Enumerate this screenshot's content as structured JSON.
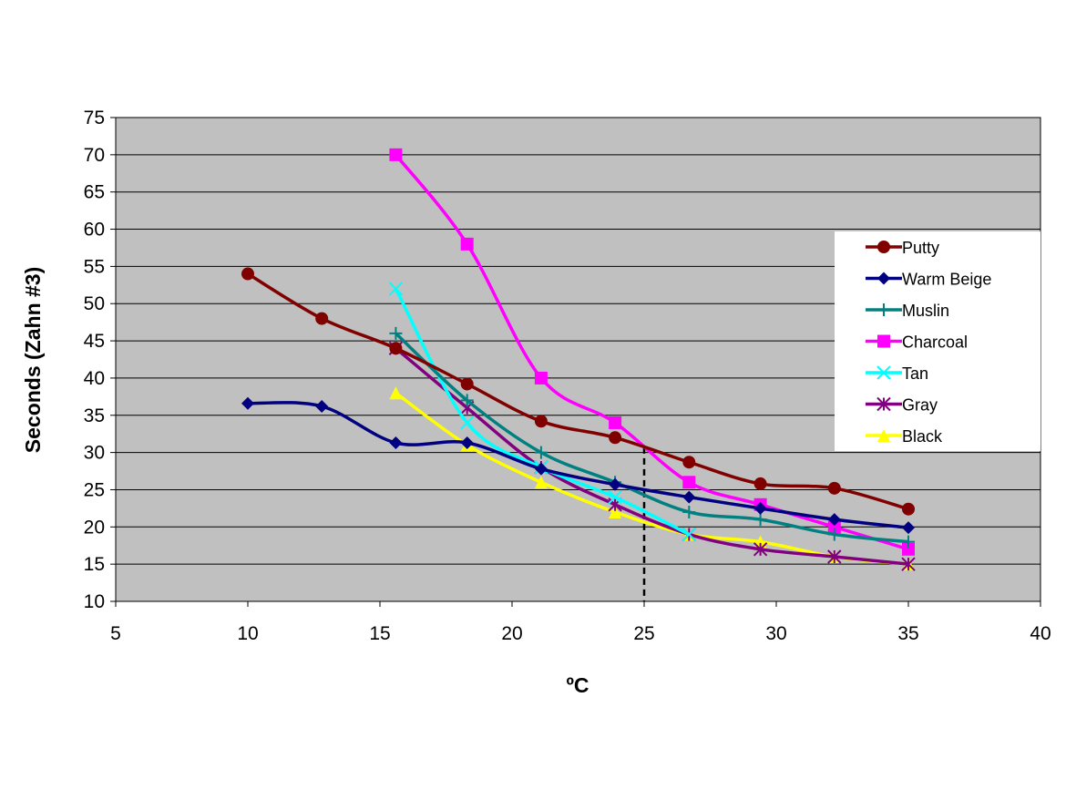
{
  "chart_data": {
    "type": "line",
    "title": "",
    "xlabel": "ºC",
    "ylabel": "Seconds (Zahn #3)",
    "xlim": [
      5,
      40
    ],
    "ylim": [
      10,
      75
    ],
    "xticks": [
      5,
      10,
      15,
      20,
      25,
      30,
      35,
      40
    ],
    "yticks": [
      10,
      15,
      20,
      25,
      30,
      35,
      40,
      45,
      50,
      55,
      60,
      65,
      70,
      75
    ],
    "grid": "horizontal",
    "legend_position": "right",
    "smoothed": true,
    "background_color": "#C0C0C0",
    "reference_line": {
      "x": 25,
      "style": "dashed"
    },
    "series": [
      {
        "name": "Putty",
        "color": "#800000",
        "marker": "circle",
        "x": [
          10,
          12.8,
          15.6,
          18.3,
          21.1,
          23.9,
          26.7,
          29.4,
          32.2,
          35
        ],
        "y": [
          54,
          48,
          44,
          39.2,
          34.2,
          32,
          28.7,
          25.8,
          25.2,
          22.4
        ]
      },
      {
        "name": "Warm Beige",
        "color": "#000080",
        "marker": "diamond",
        "x": [
          10,
          12.8,
          15.6,
          18.3,
          21.1,
          23.9,
          26.7,
          29.4,
          32.2,
          35
        ],
        "y": [
          36.6,
          36.2,
          31.3,
          31.3,
          27.8,
          25.7,
          24,
          22.5,
          21,
          19.9
        ]
      },
      {
        "name": "Muslin",
        "color": "#008080",
        "marker": "plus",
        "x": [
          15.6,
          18.3,
          21.1,
          23.9,
          26.7,
          29.4,
          32.2,
          35
        ],
        "y": [
          46,
          37,
          30,
          26,
          22,
          21,
          19,
          18
        ]
      },
      {
        "name": "Charcoal",
        "color": "#FF00FF",
        "marker": "square",
        "x": [
          15.6,
          18.3,
          21.1,
          23.9,
          26.7,
          29.4,
          32.2,
          35
        ],
        "y": [
          70,
          58,
          40,
          34,
          26,
          23,
          20,
          17
        ]
      },
      {
        "name": "Tan",
        "color": "#00FFFF",
        "marker": "x",
        "x": [
          15.6,
          18.3,
          21.1,
          23.9,
          26.7
        ],
        "y": [
          52,
          34,
          28,
          24,
          19
        ]
      },
      {
        "name": "Gray",
        "color": "#800080",
        "marker": "star",
        "x": [
          15.6,
          18.3,
          21.1,
          23.9,
          26.7,
          29.4,
          32.2,
          35
        ],
        "y": [
          44,
          36,
          28,
          23,
          19,
          17,
          16,
          15
        ]
      },
      {
        "name": "Black",
        "color": "#FFFF00",
        "marker": "triangle",
        "x": [
          15.6,
          18.3,
          21.1,
          23.9,
          26.7,
          29.4,
          32.2,
          35
        ],
        "y": [
          38,
          31,
          26,
          22,
          19,
          18,
          16,
          15
        ]
      }
    ]
  }
}
